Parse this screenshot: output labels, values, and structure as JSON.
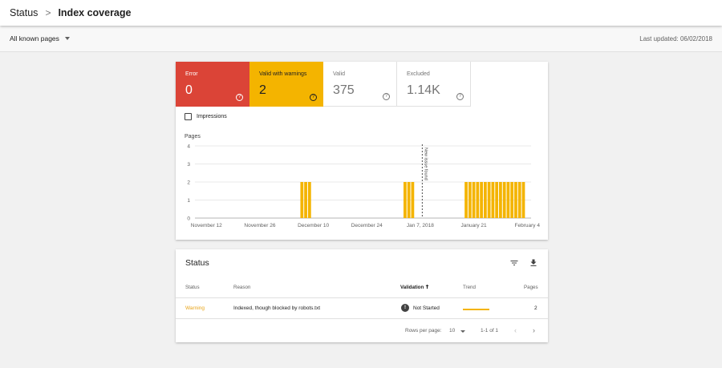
{
  "breadcrumb": {
    "parent": "Status",
    "separator": ">",
    "current": "Index coverage"
  },
  "filter": {
    "label": "All known pages"
  },
  "last_updated": "Last updated: 06/02/2018",
  "tiles": [
    {
      "label": "Error",
      "value": "0",
      "help": "?"
    },
    {
      "label": "Valid with warnings",
      "value": "2",
      "help": "?"
    },
    {
      "label": "Valid",
      "value": "375",
      "help": "?"
    },
    {
      "label": "Excluded",
      "value": "1.14K",
      "help": "?"
    }
  ],
  "impressions_label": "Impressions",
  "colors": {
    "error": "#db4437",
    "warning": "#f4b400",
    "grid": "#e0e0e0"
  },
  "chart_data": {
    "type": "bar",
    "ylabel": "Pages",
    "ylim": [
      0,
      4
    ],
    "yticks": [
      "0",
      "1",
      "2",
      "3",
      "4"
    ],
    "x_ticks": [
      "November 12",
      "November 26",
      "December 10",
      "December 24",
      "Jan 7, 2018",
      "January 21",
      "February 4"
    ],
    "x_start": "2017-11-09",
    "x_end": "2018-02-05",
    "series": [
      {
        "values": [
          {
            "x": "2017-12-07",
            "y": 2
          },
          {
            "x": "2017-12-08",
            "y": 2
          },
          {
            "x": "2017-12-09",
            "y": 2
          },
          {
            "x": "2018-01-03",
            "y": 2
          },
          {
            "x": "2018-01-04",
            "y": 2
          },
          {
            "x": "2018-01-05",
            "y": 2
          },
          {
            "x": "2018-01-19",
            "y": 2
          },
          {
            "x": "2018-01-20",
            "y": 2
          },
          {
            "x": "2018-01-21",
            "y": 2
          },
          {
            "x": "2018-01-22",
            "y": 2
          },
          {
            "x": "2018-01-23",
            "y": 2
          },
          {
            "x": "2018-01-24",
            "y": 2
          },
          {
            "x": "2018-01-25",
            "y": 2
          },
          {
            "x": "2018-01-26",
            "y": 2
          },
          {
            "x": "2018-01-27",
            "y": 2
          },
          {
            "x": "2018-01-28",
            "y": 2
          },
          {
            "x": "2018-01-29",
            "y": 2
          },
          {
            "x": "2018-01-30",
            "y": 2
          },
          {
            "x": "2018-01-31",
            "y": 2
          },
          {
            "x": "2018-02-01",
            "y": 2
          },
          {
            "x": "2018-02-02",
            "y": 2
          },
          {
            "x": "2018-02-03",
            "y": 2
          }
        ]
      }
    ],
    "annotation": {
      "x": "2018-01-07",
      "label": "New issue found"
    },
    "grid": true
  },
  "status_table": {
    "title": "Status",
    "columns": [
      "Status",
      "Reason",
      "Validation",
      "Trend",
      "Pages"
    ],
    "sort_icon": "arrow-up-icon",
    "rows": [
      {
        "status": "Warning",
        "reason": "Indexed, though blocked by robots.txt",
        "validation_icon": "!",
        "validation": "Not Started",
        "trend": "flat",
        "pages": "2"
      }
    ],
    "footer": {
      "rows_per_page_label": "Rows per page:",
      "rows_per_page": "10",
      "range": "1-1 of 1",
      "prev": "‹",
      "next": "›"
    }
  }
}
